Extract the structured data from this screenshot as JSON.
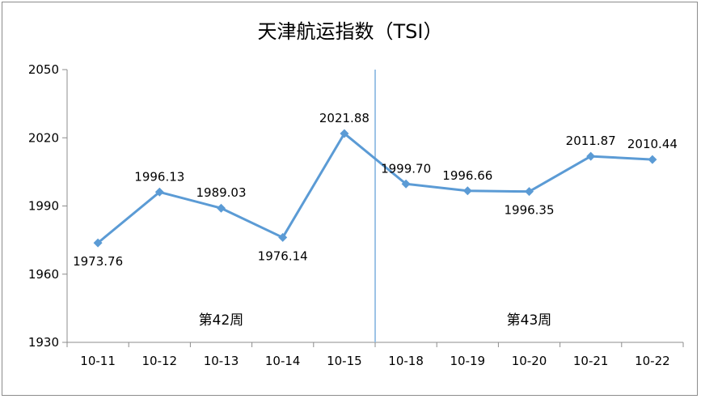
{
  "chart_data": {
    "type": "line",
    "title": "天津航运指数（TSI）",
    "categories": [
      "10-11",
      "10-12",
      "10-13",
      "10-14",
      "10-15",
      "10-18",
      "10-19",
      "10-20",
      "10-21",
      "10-22"
    ],
    "series": [
      {
        "values": [
          1973.76,
          1996.13,
          1989.03,
          1976.14,
          2021.88,
          1999.7,
          1996.66,
          1996.35,
          2011.87,
          2010.44
        ],
        "labels": [
          "1973.76",
          "1996.13",
          "1989.03",
          "1976.14",
          "2021.88",
          "1999.70",
          "1996.66",
          "1996.35",
          "2011.87",
          "2010.44"
        ],
        "label_positions": [
          "below",
          "above",
          "above",
          "below",
          "above",
          "above",
          "above",
          "below",
          "above",
          "above"
        ],
        "color": "#5b9bd5"
      }
    ],
    "ylim": [
      1930,
      2050
    ],
    "yticks": [
      "1930",
      "1960",
      "1990",
      "2020",
      "2050"
    ],
    "xlabel": "",
    "ylabel": "",
    "legend": "none",
    "grid": false,
    "week_groups": [
      {
        "label": "第42周",
        "categories": [
          "10-11",
          "10-12",
          "10-13",
          "10-14",
          "10-15"
        ]
      },
      {
        "label": "第43周",
        "categories": [
          "10-18",
          "10-19",
          "10-20",
          "10-21",
          "10-22"
        ]
      }
    ],
    "separator_color": "#9dc3e6",
    "axis_color": "#8c8c8c"
  }
}
